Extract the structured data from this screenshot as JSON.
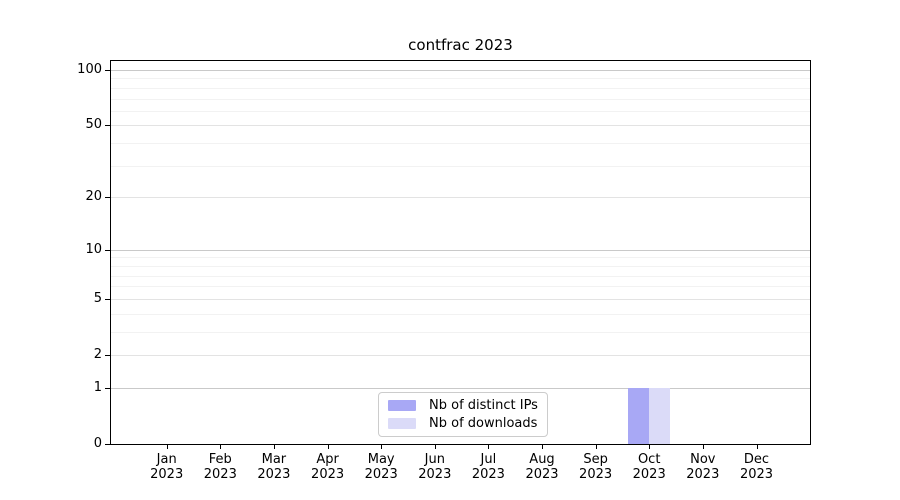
{
  "chart_data": {
    "type": "bar",
    "title": "contfrac 2023",
    "year": "2023",
    "months": [
      "Jan",
      "Feb",
      "Mar",
      "Apr",
      "May",
      "Jun",
      "Jul",
      "Aug",
      "Sep",
      "Oct",
      "Nov",
      "Dec"
    ],
    "series": [
      {
        "name": "Nb of distinct IPs",
        "color": "#a8a8f5",
        "values": [
          0,
          0,
          0,
          0,
          0,
          0,
          0,
          0,
          0,
          1,
          0,
          0
        ]
      },
      {
        "name": "Nb of downloads",
        "color": "#dbdbf8",
        "values": [
          0,
          0,
          0,
          0,
          0,
          0,
          0,
          0,
          0,
          1,
          0,
          0
        ]
      }
    ],
    "y_axis": {
      "scale": "log1p",
      "major_ticks": [
        0,
        1,
        2,
        5,
        10,
        20,
        50,
        100
      ],
      "decade_ticks": [
        1,
        10,
        100
      ],
      "minor_ticks": [
        3,
        4,
        6,
        7,
        8,
        9,
        30,
        40,
        60,
        70,
        80,
        90
      ],
      "ylim": [
        0,
        112
      ]
    },
    "grid": true,
    "legend_position": "lower-center",
    "colors": {
      "spine": "#000000",
      "grid_decade": "#c9c9c9",
      "grid_major": "#e3e3e3",
      "grid_minor": "#f2f2f2",
      "legend_border": "#cccccc"
    }
  }
}
